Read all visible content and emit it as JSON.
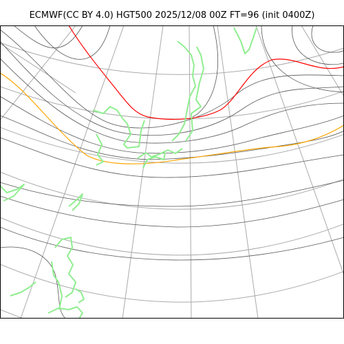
{
  "title": "ECMWF(CC BY 4.0) HGT500 2025/12/08 00Z FT=96 (init 0400Z)",
  "colors": {
    "graticule": "#aaaaaa",
    "contour": "#555555",
    "highlight_contour_warm": "#ff0000",
    "highlight_contour_cold": "#ffa500",
    "coastline": "#90ee90",
    "border": "#000000",
    "background": "#ffffff"
  },
  "layers": [
    "graticule",
    "height-contours",
    "coastlines"
  ]
}
